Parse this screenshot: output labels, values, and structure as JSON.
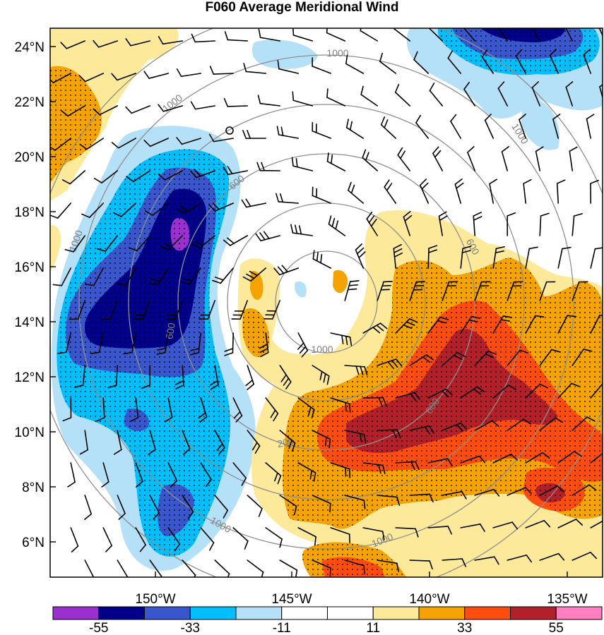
{
  "title": "F060 Average Meridional Wind",
  "lat_labels": [
    "24°N",
    "22°N",
    "20°N",
    "18°N",
    "16°N",
    "14°N",
    "12°N",
    "10°N",
    "8°N",
    "6°N"
  ],
  "lon_labels": [
    "150°W",
    "145°W",
    "140°W",
    "135°W"
  ],
  "ring_labels": [
    "1000",
    "1000",
    "1000",
    "1000",
    "600",
    "600",
    "600",
    "600",
    "200",
    "1000",
    "1000",
    "1000"
  ],
  "colorbar": {
    "colors": [
      "#9b30d0",
      "#00008b",
      "#3a56cc",
      "#00bfff",
      "#b4e0f8",
      "#ffffff",
      "#ffffff",
      "#fcea9a",
      "#f5a300",
      "#ff4d10",
      "#b2202a",
      "#ff7fc0"
    ],
    "labels": [
      "-55",
      "-33",
      "-11",
      "11",
      "33",
      "55"
    ]
  },
  "colors": {
    "ring": "#8f8f8f",
    "barb": "#000000"
  }
}
